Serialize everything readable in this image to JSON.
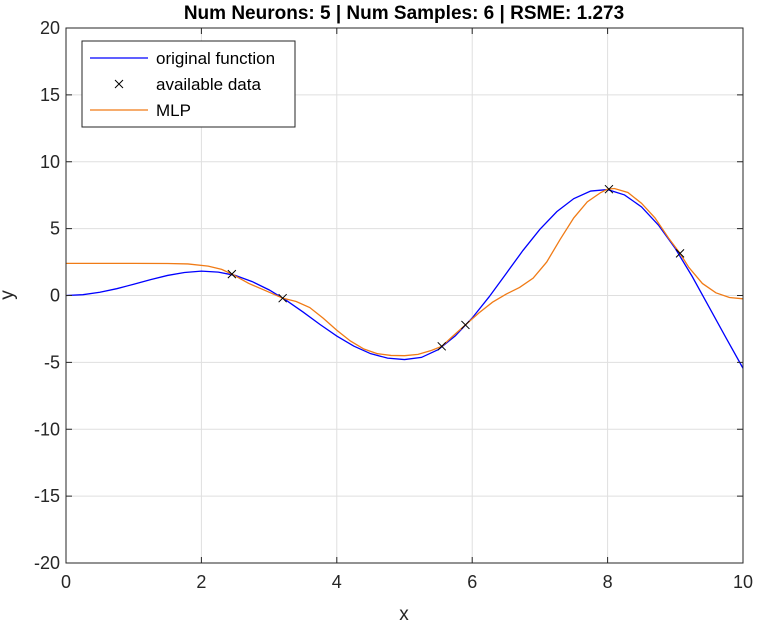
{
  "chart_data": {
    "type": "line",
    "title": "Num Neurons: 5 | Num Samples: 6 | RSME: 1.273",
    "xlabel": "x",
    "ylabel": "y",
    "xlim": [
      0,
      10
    ],
    "ylim": [
      -20,
      20
    ],
    "xticks": [
      0,
      2,
      4,
      6,
      8,
      10
    ],
    "yticks": [
      -20,
      -15,
      -10,
      -5,
      0,
      5,
      10,
      15,
      20
    ],
    "grid": true,
    "legend_position": "top-left",
    "legend": [
      "original function",
      "available data",
      "MLP"
    ],
    "series": [
      {
        "name": "original function",
        "kind": "line",
        "color": "#0000ff",
        "x": [
          0,
          0.25,
          0.5,
          0.75,
          1,
          1.25,
          1.5,
          1.75,
          2,
          2.25,
          2.5,
          2.75,
          3,
          3.25,
          3.5,
          3.75,
          4,
          4.25,
          4.5,
          4.75,
          5,
          5.25,
          5.5,
          5.75,
          6,
          6.25,
          6.5,
          6.75,
          7,
          7.25,
          7.5,
          7.75,
          8,
          8.25,
          8.5,
          8.75,
          9,
          9.25,
          9.5,
          9.75,
          10
        ],
        "y": [
          0.0,
          0.06,
          0.24,
          0.51,
          0.84,
          1.19,
          1.5,
          1.72,
          1.82,
          1.75,
          1.5,
          1.04,
          0.42,
          -0.35,
          -1.23,
          -2.16,
          -3.03,
          -3.78,
          -4.35,
          -4.68,
          -4.79,
          -4.63,
          -4.04,
          -3.02,
          -1.68,
          -0.1,
          1.63,
          3.37,
          4.95,
          6.27,
          7.24,
          7.81,
          7.92,
          7.52,
          6.63,
          5.27,
          3.51,
          1.42,
          -0.87,
          -3.17,
          -5.44
        ]
      },
      {
        "name": "available data",
        "kind": "scatter",
        "color": "#000000",
        "x": [
          2.45,
          3.2,
          5.55,
          5.9,
          8.02,
          9.07
        ],
        "y": [
          1.6,
          -0.2,
          -3.8,
          -2.2,
          7.95,
          3.15
        ]
      },
      {
        "name": "MLP",
        "kind": "line",
        "color": "#f07b16",
        "x": [
          0,
          0.5,
          1,
          1.5,
          1.8,
          2.1,
          2.3,
          2.45,
          2.7,
          3.0,
          3.2,
          3.4,
          3.6,
          3.8,
          4.0,
          4.2,
          4.4,
          4.6,
          4.8,
          5.0,
          5.2,
          5.4,
          5.55,
          5.7,
          5.9,
          6.1,
          6.3,
          6.5,
          6.7,
          6.9,
          7.1,
          7.3,
          7.5,
          7.7,
          7.9,
          8.0,
          8.1,
          8.3,
          8.5,
          8.7,
          8.9,
          9.07,
          9.2,
          9.4,
          9.6,
          9.8,
          10
        ],
        "y": [
          2.4,
          2.4,
          2.4,
          2.39,
          2.36,
          2.2,
          1.95,
          1.6,
          0.9,
          0.25,
          -0.2,
          -0.45,
          -0.9,
          -1.7,
          -2.6,
          -3.4,
          -4.0,
          -4.35,
          -4.48,
          -4.5,
          -4.4,
          -4.1,
          -3.8,
          -3.1,
          -2.2,
          -1.3,
          -0.5,
          0.1,
          0.6,
          1.3,
          2.5,
          4.2,
          5.8,
          7.0,
          7.7,
          7.95,
          8.0,
          7.7,
          6.9,
          5.8,
          4.3,
          3.15,
          2.1,
          0.9,
          0.2,
          -0.15,
          -0.25
        ]
      }
    ]
  }
}
